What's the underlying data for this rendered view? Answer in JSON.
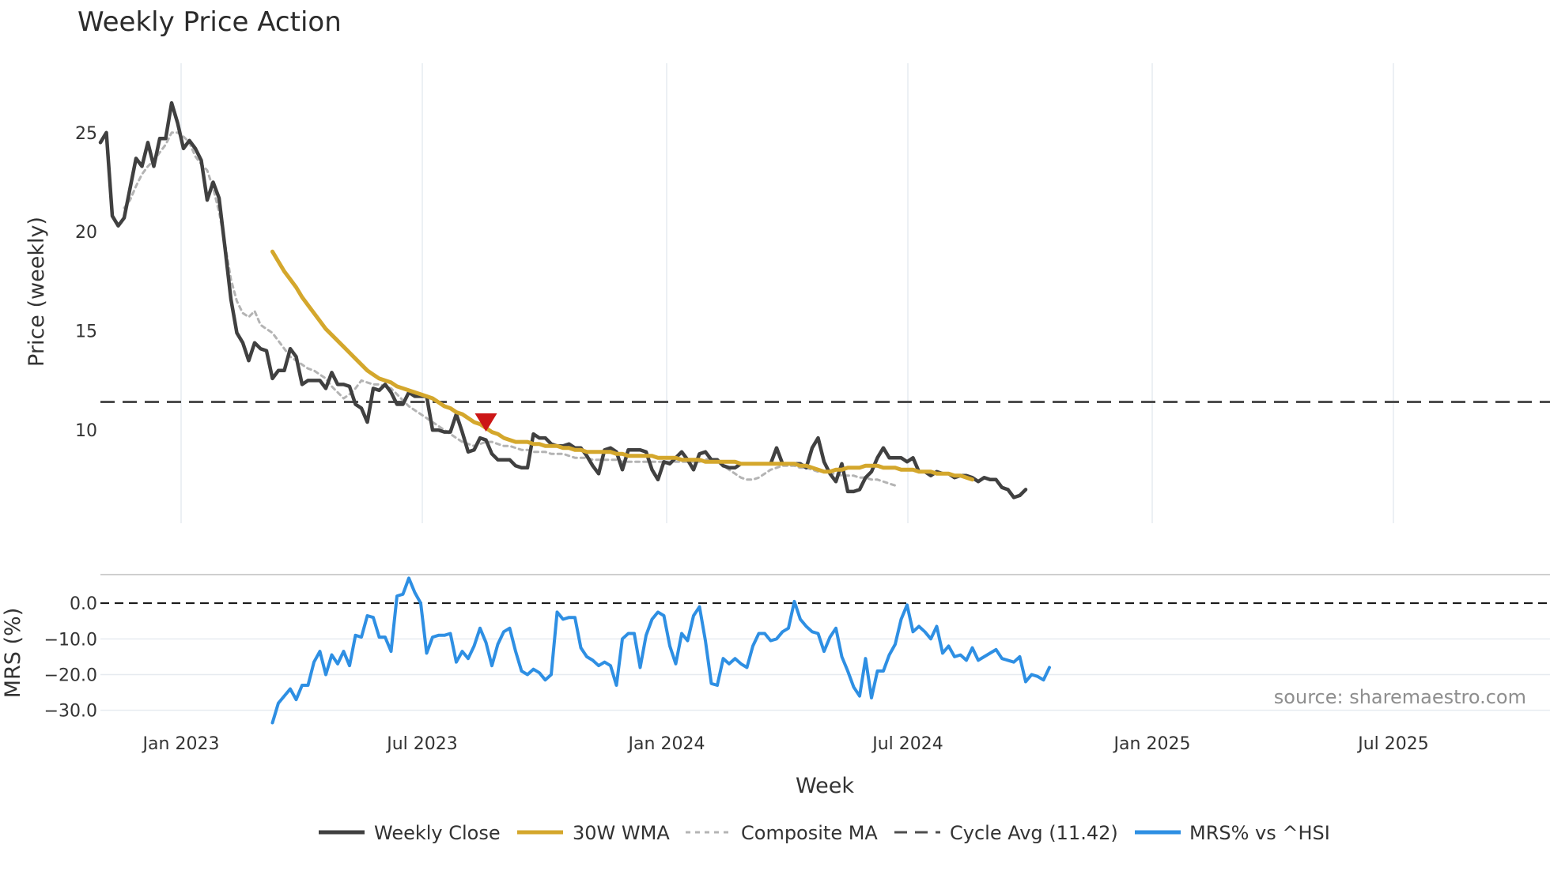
{
  "chart_data": {
    "type": "line",
    "title": "Weekly Price Action",
    "x_tick_labels": [
      "Jan 2023",
      "Jul 2023",
      "Jan 2024",
      "Jul 2024",
      "Jan 2025",
      "Jul 2025"
    ],
    "xlabel": "Week",
    "source_note": "source: sharemaestro.com",
    "price_panel": {
      "ylabel": "Price (weekly)",
      "ylim": [
        5.3,
        28.5
      ],
      "y_ticks": [
        10,
        15,
        20,
        25
      ],
      "y_tick_labels": [
        "10",
        "15",
        "20",
        "25"
      ],
      "cycle_avg": 11.42,
      "signal_marker": {
        "type": "sell",
        "week_index": 65,
        "value": 10.4
      },
      "series": [
        {
          "name": "Weekly Close",
          "start_index": 0,
          "values": [
            24.5,
            25.0,
            20.8,
            20.3,
            20.7,
            22.2,
            23.7,
            23.3,
            24.5,
            23.3,
            24.7,
            24.7,
            26.5,
            25.5,
            24.2,
            24.6,
            24.2,
            23.6,
            21.6,
            22.5,
            21.7,
            19.2,
            16.6,
            14.9,
            14.4,
            13.5,
            14.4,
            14.1,
            14.0,
            12.6,
            13.0,
            13.0,
            14.1,
            13.7,
            12.3,
            12.5,
            12.5,
            12.5,
            12.1,
            12.9,
            12.3,
            12.3,
            12.2,
            11.3,
            11.1,
            10.4,
            12.1,
            12.0,
            12.3,
            11.9,
            11.3,
            11.3,
            11.9,
            11.7,
            11.7,
            11.7,
            10.0,
            10.0,
            9.9,
            9.9,
            10.8,
            9.9,
            8.9,
            9.0,
            9.6,
            9.5,
            8.8,
            8.5,
            8.5,
            8.5,
            8.2,
            8.1,
            8.1,
            9.8,
            9.6,
            9.6,
            9.3,
            9.2,
            9.2,
            9.3,
            9.1,
            9.1,
            8.7,
            8.2,
            7.8,
            9.0,
            9.1,
            8.9,
            8.0,
            9.0,
            9.0,
            9.0,
            8.9,
            8.0,
            7.5,
            8.4,
            8.3,
            8.6,
            8.9,
            8.5,
            8.0,
            8.8,
            8.9,
            8.5,
            8.5,
            8.2,
            8.1,
            8.1,
            8.3,
            8.3,
            8.3,
            8.3,
            8.3,
            8.3,
            9.1,
            8.3,
            8.3,
            8.3,
            8.3,
            8.1,
            9.1,
            9.6,
            8.4,
            7.8,
            7.4,
            8.3,
            6.9,
            6.9,
            7.0,
            7.6,
            7.9,
            8.6,
            9.1,
            8.6,
            8.6,
            8.6,
            8.4,
            8.6,
            7.9,
            7.9,
            7.7,
            7.9,
            7.8,
            7.8,
            7.6,
            7.7,
            7.7,
            7.6,
            7.4,
            7.6,
            7.5,
            7.5,
            7.1,
            7.0,
            6.6,
            6.7,
            7.0
          ]
        },
        {
          "name": "30W WMA",
          "start_index": 29,
          "values": [
            19.0,
            18.5,
            18.0,
            17.6,
            17.2,
            16.7,
            16.3,
            15.9,
            15.5,
            15.1,
            14.8,
            14.5,
            14.2,
            13.9,
            13.6,
            13.3,
            13.0,
            12.8,
            12.6,
            12.5,
            12.4,
            12.2,
            12.1,
            12.0,
            11.9,
            11.8,
            11.7,
            11.6,
            11.4,
            11.2,
            11.1,
            10.9,
            10.8,
            10.6,
            10.4,
            10.3,
            10.1,
            9.9,
            9.8,
            9.6,
            9.5,
            9.4,
            9.4,
            9.4,
            9.3,
            9.3,
            9.2,
            9.2,
            9.2,
            9.1,
            9.1,
            9.0,
            9.0,
            8.9,
            8.9,
            8.9,
            8.9,
            8.9,
            8.8,
            8.8,
            8.7,
            8.7,
            8.7,
            8.7,
            8.7,
            8.6,
            8.6,
            8.6,
            8.6,
            8.5,
            8.5,
            8.5,
            8.5,
            8.4,
            8.4,
            8.4,
            8.4,
            8.4,
            8.4,
            8.3,
            8.3,
            8.3,
            8.3,
            8.3,
            8.3,
            8.3,
            8.3,
            8.3,
            8.3,
            8.2,
            8.2,
            8.1,
            8.0,
            7.9,
            7.9,
            8.0,
            8.0,
            8.1,
            8.1,
            8.1,
            8.2,
            8.2,
            8.2,
            8.1,
            8.1,
            8.1,
            8.0,
            8.0,
            8.0,
            7.9,
            7.9,
            7.9,
            7.8,
            7.8,
            7.8,
            7.7,
            7.7,
            7.6,
            7.5
          ]
        },
        {
          "name": "Composite MA",
          "start_index": 4,
          "values": [
            21.2,
            21.6,
            22.3,
            22.9,
            23.3,
            23.6,
            24.0,
            24.4,
            25.0,
            25.0,
            24.8,
            24.5,
            23.8,
            23.4,
            23.1,
            22.2,
            21.0,
            19.4,
            17.6,
            16.5,
            15.9,
            15.7,
            16.0,
            15.3,
            15.1,
            14.9,
            14.5,
            14.1,
            13.7,
            13.5,
            13.3,
            13.1,
            13.0,
            12.8,
            12.6,
            12.2,
            11.9,
            11.6,
            11.8,
            12.1,
            12.5,
            12.4,
            12.3,
            12.3,
            12.2,
            12.1,
            11.8,
            11.5,
            11.2,
            11.0,
            10.8,
            10.6,
            10.4,
            10.2,
            10.0,
            9.8,
            9.6,
            9.4,
            9.3,
            9.2,
            9.3,
            9.4,
            9.4,
            9.3,
            9.2,
            9.2,
            9.1,
            9.0,
            9.0,
            8.9,
            8.9,
            8.9,
            8.8,
            8.8,
            8.8,
            8.7,
            8.6,
            8.6,
            8.6,
            8.5,
            8.5,
            8.5,
            8.5,
            8.5,
            8.4,
            8.4,
            8.4,
            8.4,
            8.4,
            8.4,
            8.4,
            8.4,
            8.4,
            8.4,
            8.4,
            8.4,
            8.4,
            8.4,
            8.5,
            8.6,
            8.4,
            8.2,
            8.0,
            7.8,
            7.6,
            7.5,
            7.5,
            7.6,
            7.8,
            8.0,
            8.1,
            8.2,
            8.2,
            8.2,
            8.1,
            8.1,
            8.0,
            7.9,
            7.9,
            7.8,
            7.8,
            7.7,
            7.7,
            7.7,
            7.6,
            7.6,
            7.5,
            7.5,
            7.4,
            7.3,
            7.2
          ]
        }
      ]
    },
    "mrs_panel": {
      "ylabel": "MRS (%)",
      "ylim": [
        -34.5,
        8.0
      ],
      "y_ticks": [
        0,
        -10,
        -20,
        -30
      ],
      "y_tick_labels": [
        "0.0",
        "−10.0",
        "−20.0",
        "−30.0"
      ],
      "reference_line": 0,
      "series": [
        {
          "name": "MRS% vs ^HSI",
          "start_index": 29,
          "values": [
            -33.5,
            -28.0,
            -26.0,
            -24.0,
            -27.0,
            -23.0,
            -23.0,
            -16.5,
            -13.5,
            -20.0,
            -14.5,
            -17.0,
            -13.5,
            -17.5,
            -9.0,
            -9.5,
            -3.5,
            -4.0,
            -9.5,
            -9.5,
            -13.5,
            2.0,
            2.5,
            7.0,
            3.0,
            0.0,
            -14.0,
            -9.5,
            -9.0,
            -9.0,
            -8.5,
            -16.5,
            -13.5,
            -15.5,
            -12.0,
            -7.0,
            -11.0,
            -17.5,
            -11.5,
            -8.0,
            -7.0,
            -13.5,
            -19.0,
            -20.0,
            -18.5,
            -19.5,
            -21.5,
            -20.0,
            -2.5,
            -4.5,
            -4.0,
            -4.0,
            -12.5,
            -15.0,
            -16.0,
            -17.5,
            -16.5,
            -17.5,
            -23.0,
            -10.0,
            -8.5,
            -8.5,
            -18.0,
            -9.0,
            -4.5,
            -2.5,
            -3.5,
            -12.0,
            -17.0,
            -8.5,
            -10.5,
            -3.5,
            -1.0,
            -10.5,
            -22.5,
            -23.0,
            -15.5,
            -17.0,
            -15.5,
            -17.0,
            -18.0,
            -12.0,
            -8.5,
            -8.5,
            -10.5,
            -10.0,
            -8.0,
            -7.0,
            0.5,
            -4.5,
            -6.5,
            -8.0,
            -8.5,
            -13.5,
            -9.5,
            -7.0,
            -15.0,
            -19.0,
            -23.5,
            -26.0,
            -15.5,
            -26.5,
            -19.0,
            -19.0,
            -14.5,
            -11.5,
            -4.5,
            -0.5,
            -8.0,
            -6.5,
            -8.0,
            -10.0,
            -6.5,
            -14.0,
            -12.0,
            -15.0,
            -14.5,
            -16.0,
            -12.5,
            -16.0,
            -15.0,
            -14.0,
            -13.0,
            -15.5,
            -16.0,
            -16.5,
            -15.0,
            -22.0,
            -20.0,
            -20.5,
            -21.5,
            -18.0
          ]
        }
      ]
    },
    "legend": {
      "placement": "bottom-center",
      "entries": [
        "Weekly Close",
        "30W WMA",
        "Composite MA",
        "Cycle Avg (11.42)",
        "MRS% vs ^HSI"
      ]
    },
    "colors": {
      "close": "#404040",
      "wma": "#d4a72c",
      "composite": "#b4b4b4",
      "cycle": "#4d4d4d",
      "mrs": "#2e8fe3",
      "marker": "#cc1616",
      "grid": "#e6ebf0"
    }
  }
}
